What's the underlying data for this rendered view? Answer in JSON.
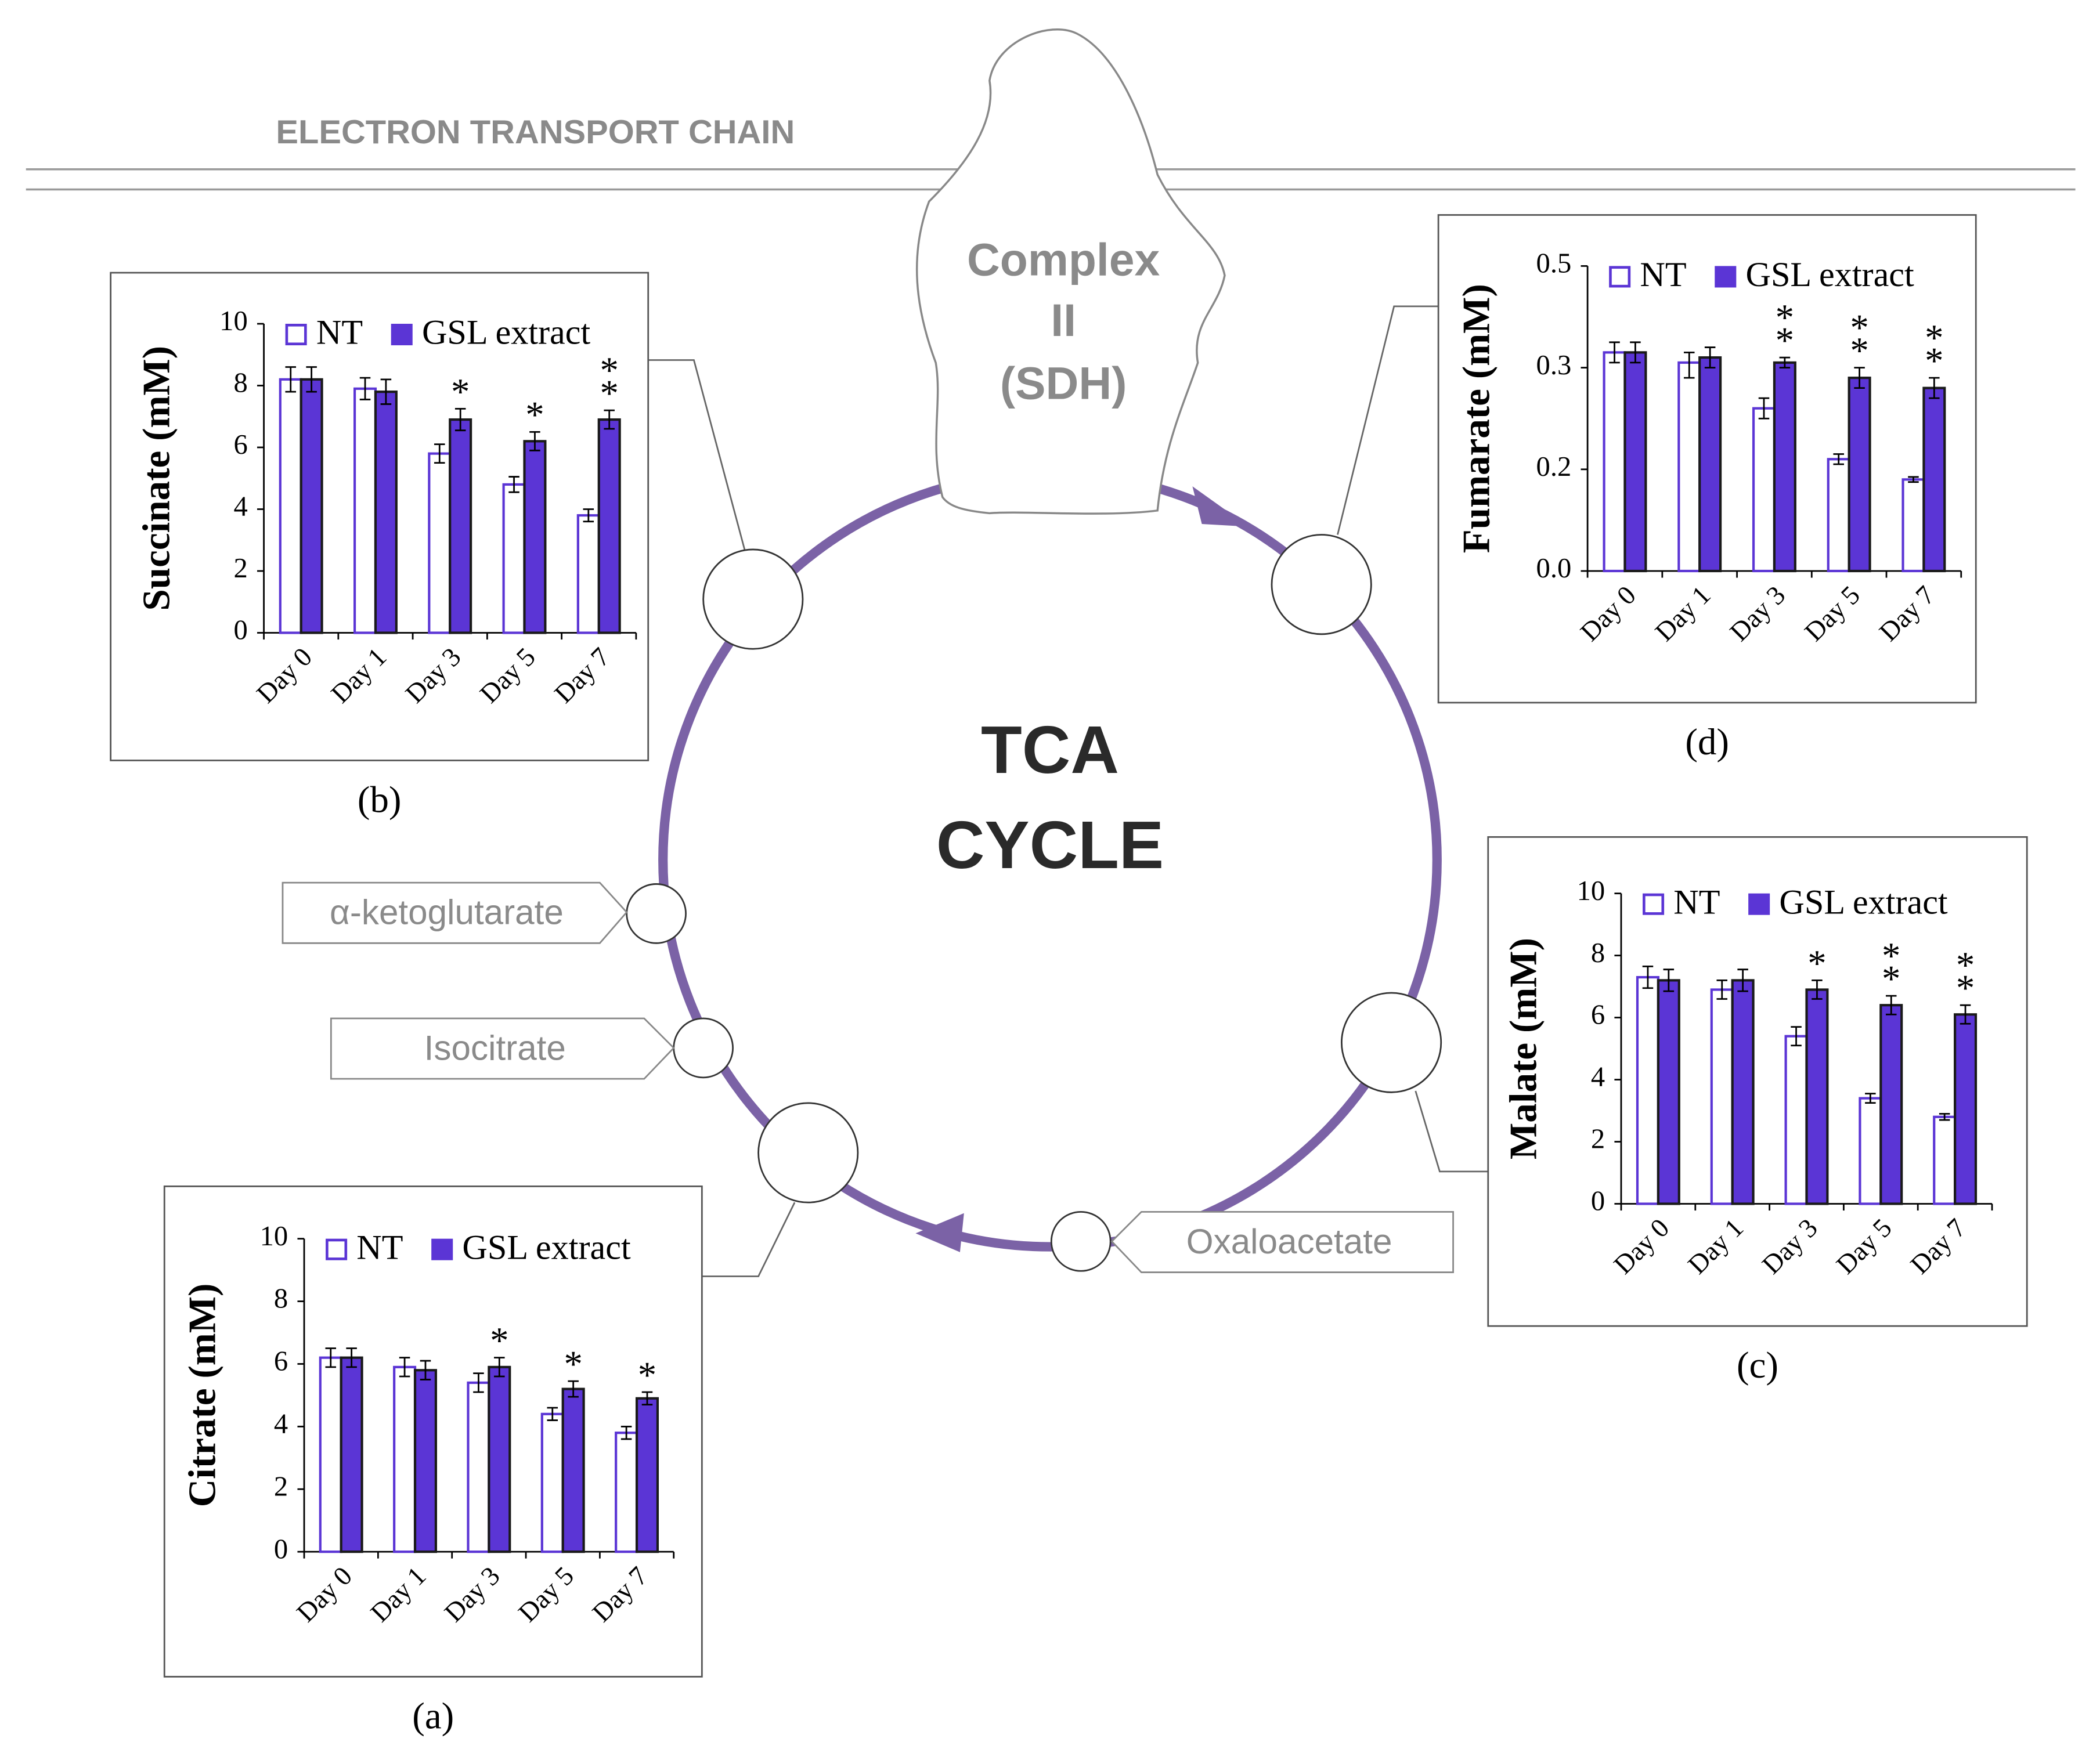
{
  "diagram": {
    "header": "ELECTRON TRANSPORT CHAIN",
    "complex": [
      "Complex",
      "II",
      "(SDH)"
    ],
    "cycle": [
      "TCA",
      "CYCLE"
    ],
    "metabolites": [
      "α-ketoglutarate",
      "Isocitrate",
      "Oxaloacetate"
    ]
  },
  "chart_data": [
    {
      "type": "bar",
      "caption": "(a)",
      "ylabel": "Citrate (mM)",
      "categories": [
        "Day 0",
        "Day 1",
        "Day 3",
        "Day 5",
        "Day 7"
      ],
      "series": [
        {
          "name": "NT",
          "color": "#ffffff",
          "edgecolor": "#5b35d5",
          "values": [
            6.2,
            5.9,
            5.4,
            4.4,
            3.8
          ],
          "errors": [
            0.3,
            0.3,
            0.3,
            0.2,
            0.2
          ]
        },
        {
          "name": "GSL extract",
          "color": "#5b35d5",
          "edgecolor": "#1a1a1a",
          "values": [
            6.2,
            5.8,
            5.9,
            5.2,
            4.9
          ],
          "errors": [
            0.3,
            0.3,
            0.3,
            0.25,
            0.2
          ],
          "significance": [
            null,
            null,
            "*",
            "*",
            "*"
          ]
        }
      ],
      "ylim": [
        0,
        10
      ],
      "yticks": [
        0,
        2,
        4,
        6,
        8,
        10
      ],
      "legend": "top"
    },
    {
      "type": "bar",
      "caption": "(b)",
      "ylabel": "Succinate (mM)",
      "categories": [
        "Day 0",
        "Day 1",
        "Day 3",
        "Day 5",
        "Day 7"
      ],
      "series": [
        {
          "name": "NT",
          "color": "#ffffff",
          "edgecolor": "#5b35d5",
          "values": [
            8.2,
            7.9,
            5.8,
            4.8,
            3.8
          ],
          "errors": [
            0.4,
            0.35,
            0.3,
            0.25,
            0.2
          ]
        },
        {
          "name": "GSL extract",
          "color": "#5b35d5",
          "edgecolor": "#1a1a1a",
          "values": [
            8.2,
            7.8,
            6.9,
            6.2,
            6.9
          ],
          "errors": [
            0.4,
            0.4,
            0.35,
            0.3,
            0.3
          ],
          "significance": [
            null,
            null,
            "*",
            "*",
            "**"
          ]
        }
      ],
      "ylim": [
        0,
        10
      ],
      "yticks": [
        0,
        2,
        4,
        6,
        8,
        10
      ],
      "legend": "top"
    },
    {
      "type": "bar",
      "caption": "(c)",
      "ylabel": "Malate (mM)",
      "categories": [
        "Day 0",
        "Day 1",
        "Day 3",
        "Day 5",
        "Day 7"
      ],
      "series": [
        {
          "name": "NT",
          "color": "#ffffff",
          "edgecolor": "#5b35d5",
          "values": [
            7.3,
            6.9,
            5.4,
            3.4,
            2.8
          ],
          "errors": [
            0.35,
            0.3,
            0.3,
            0.15,
            0.1
          ]
        },
        {
          "name": "GSL extract",
          "color": "#5b35d5",
          "edgecolor": "#1a1a1a",
          "values": [
            7.2,
            7.2,
            6.9,
            6.4,
            6.1
          ],
          "errors": [
            0.35,
            0.35,
            0.3,
            0.3,
            0.3
          ],
          "significance": [
            null,
            null,
            "*",
            "**",
            "**"
          ]
        }
      ],
      "ylim": [
        0,
        10
      ],
      "yticks": [
        0,
        2,
        4,
        6,
        8,
        10
      ],
      "legend": "top"
    },
    {
      "type": "bar",
      "caption": "(d)",
      "ylabel": "Fumarate (mM)",
      "categories": [
        "Day 0",
        "Day 1",
        "Day 3",
        "Day 5",
        "Day 7"
      ],
      "series": [
        {
          "name": "NT",
          "color": "#ffffff",
          "edgecolor": "#5b35d5",
          "values": [
            0.33,
            0.31,
            0.26,
            0.21,
            0.18
          ],
          "errors": [
            0.02,
            0.02,
            0.01,
            0.005,
            0.005
          ]
        },
        {
          "name": "GSL extract",
          "color": "#5b35d5",
          "edgecolor": "#1a1a1a",
          "values": [
            0.33,
            0.32,
            0.31,
            0.29,
            0.28
          ],
          "errors": [
            0.02,
            0.02,
            0.01,
            0.01,
            0.01
          ],
          "significance": [
            null,
            null,
            "**",
            "**",
            "**"
          ]
        }
      ],
      "ylim": [
        0,
        0.5
      ],
      "yticks": [
        {
          "value": 0,
          "label": "0.0"
        },
        0.2,
        0.3,
        0.5
      ],
      "tick_spacing": "even",
      "legend": "top"
    }
  ]
}
